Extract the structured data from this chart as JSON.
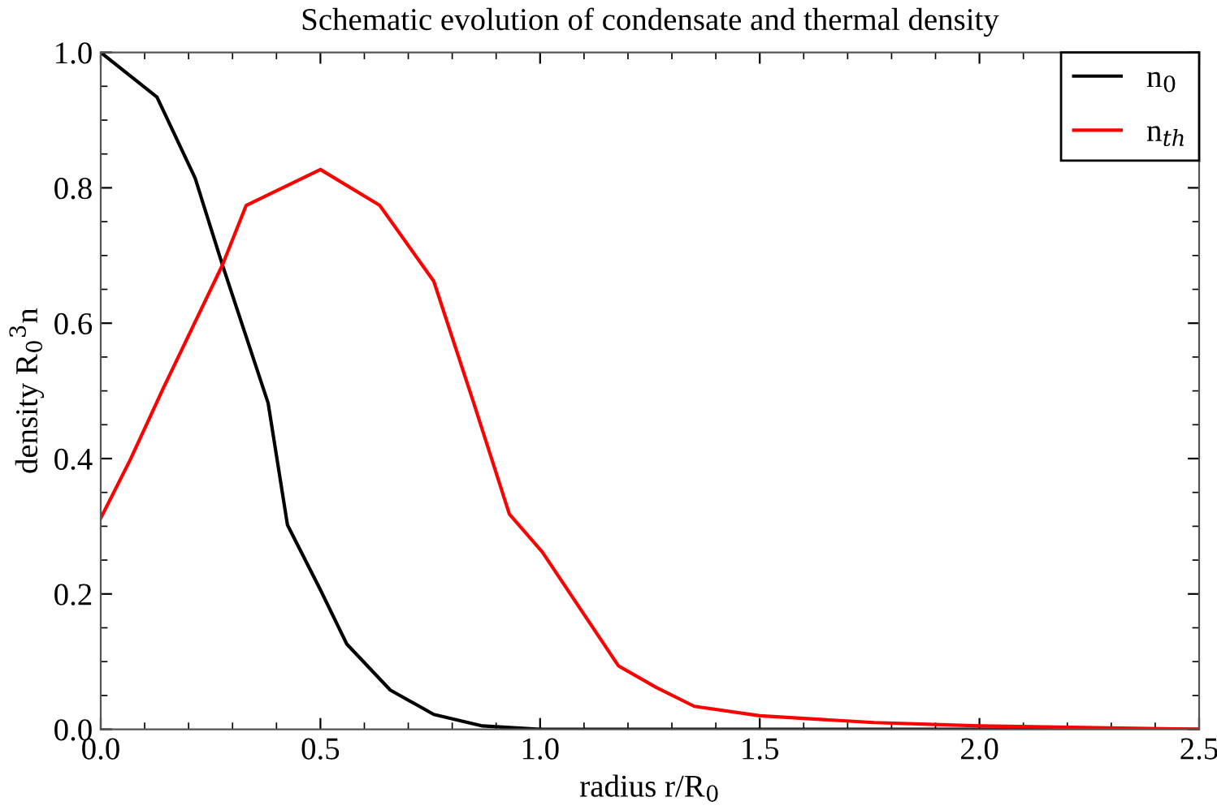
{
  "chart_data": {
    "type": "line",
    "title": "Schematic evolution of condensate and thermal density",
    "xlabel": "radius r/R$_{0}$",
    "ylabel": "density R$_{0}$$^{3}$n",
    "xlim": [
      0,
      2.5
    ],
    "ylim": [
      0,
      1.0
    ],
    "xticks": [
      {
        "value": 0,
        "label": "0.0"
      },
      0.5,
      {
        "value": 1,
        "label": "1.0"
      },
      1.5,
      {
        "value": 2,
        "label": "2.0"
      },
      2.5
    ],
    "yticks": [
      {
        "value": 0,
        "label": "0.0"
      },
      0.2,
      0.4,
      0.6,
      0.8,
      {
        "value": 1,
        "label": "1.0"
      }
    ],
    "grid": false,
    "legend": "top right",
    "marker": "none",
    "line_style": "solid",
    "series": [
      {
        "name": "n$_{0}$",
        "color": "#000000",
        "x": [
          0,
          0.128,
          0.215,
          0.277,
          0.381,
          0.425,
          0.5,
          0.56,
          0.659,
          0.758,
          0.869,
          1.0,
          1.5,
          2.0,
          2.5
        ],
        "values": [
          1.0,
          0.934,
          0.814,
          0.686,
          0.482,
          0.302,
          0.206,
          0.126,
          0.058,
          0.022,
          0.005,
          0.0,
          0.0,
          0.0,
          0.0
        ]
      },
      {
        "name": "n$_{th}$",
        "color": "#ff0000",
        "x": [
          0,
          0.067,
          0.141,
          0.277,
          0.331,
          0.5,
          0.635,
          0.758,
          0.849,
          0.93,
          1.005,
          1.178,
          1.264,
          1.351,
          1.5,
          1.76,
          2.0,
          2.5
        ],
        "values": [
          0.312,
          0.398,
          0.502,
          0.686,
          0.774,
          0.827,
          0.774,
          0.662,
          0.482,
          0.318,
          0.262,
          0.094,
          0.062,
          0.034,
          0.02,
          0.01,
          0.005,
          0.0
        ]
      }
    ]
  }
}
